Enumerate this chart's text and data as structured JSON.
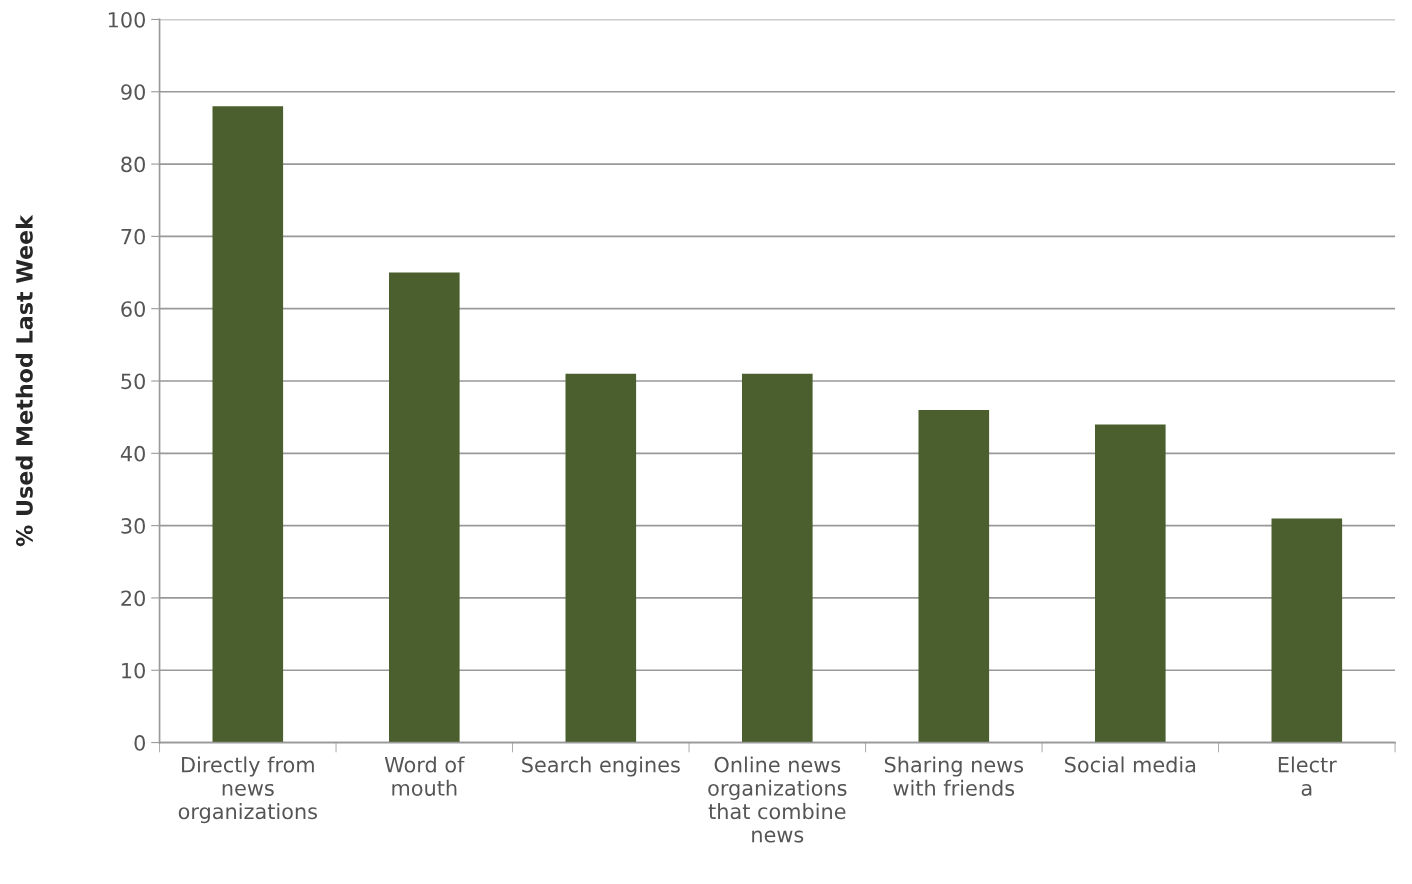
{
  "chart_data": {
    "type": "bar",
    "ylabel": "% Used Method Last Week",
    "categories": [
      "Directly from\nnews\norganizations",
      "Word of\nmouth",
      "Search engines",
      "Online news\norganizations\nthat combine\nnews",
      "Sharing news\nwith friends",
      "Social media",
      "Electr\na"
    ],
    "values": [
      88,
      65,
      51,
      51,
      46,
      44,
      31
    ],
    "color": "#4a5f2d",
    "ylim": [
      0,
      100
    ],
    "yticks": [
      0,
      10,
      20,
      30,
      40,
      50,
      60,
      70,
      80,
      90,
      100
    ],
    "grid": "y"
  }
}
